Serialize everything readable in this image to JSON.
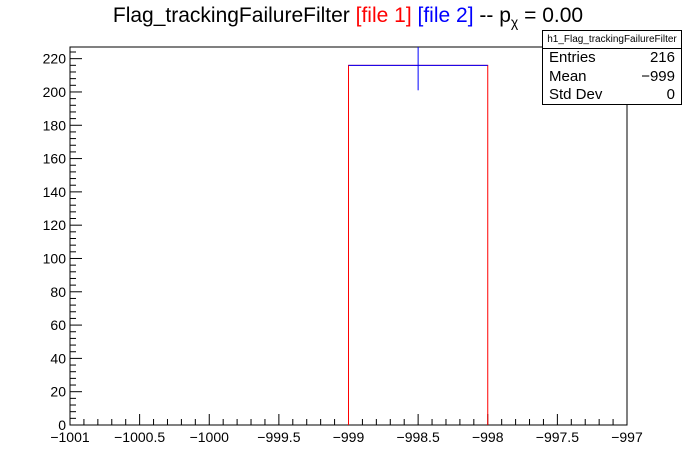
{
  "chart_data": {
    "type": "histogram",
    "title": {
      "main": "Flag_trackingFailureFilter",
      "file1": "[file 1]",
      "file2": "[file 2]",
      "sep": "--",
      "p": "p",
      "p_sub": "χ",
      "p_value": "= 0.00"
    },
    "xlabel": "",
    "ylabel": "",
    "xlim": [
      -1001,
      -997
    ],
    "ylim": [
      0,
      227
    ],
    "x_ticks": [
      -1001,
      -1000.5,
      -1000,
      -999.5,
      -999,
      -998.5,
      -998,
      -997.5,
      -997
    ],
    "x_tick_labels": [
      "−1001",
      "−1000.5",
      "−1000",
      "−999.5",
      "−999",
      "−998.5",
      "−998",
      "−997.5",
      "−997"
    ],
    "y_ticks": [
      0,
      20,
      40,
      60,
      80,
      100,
      120,
      140,
      160,
      180,
      200,
      220
    ],
    "y_tick_labels": [
      "0",
      "20",
      "40",
      "60",
      "80",
      "100",
      "120",
      "140",
      "160",
      "180",
      "200",
      "220"
    ],
    "series": [
      {
        "name": "file 1",
        "color": "#ff0000",
        "bins": [
          {
            "x0": -999,
            "x1": -998,
            "value": 216
          }
        ]
      },
      {
        "name": "file 2",
        "color": "#0000ff",
        "bins": [
          {
            "x0": -999,
            "x1": -998,
            "value": 216,
            "err_low": 201,
            "err_high": 227
          }
        ]
      }
    ],
    "stats_box": {
      "name": "h1_Flag_trackingFailureFilter",
      "rows": [
        {
          "label": "Entries",
          "value": "216"
        },
        {
          "label": "Mean",
          "value": "−999"
        },
        {
          "label": "Std Dev",
          "value": "0"
        }
      ]
    }
  }
}
